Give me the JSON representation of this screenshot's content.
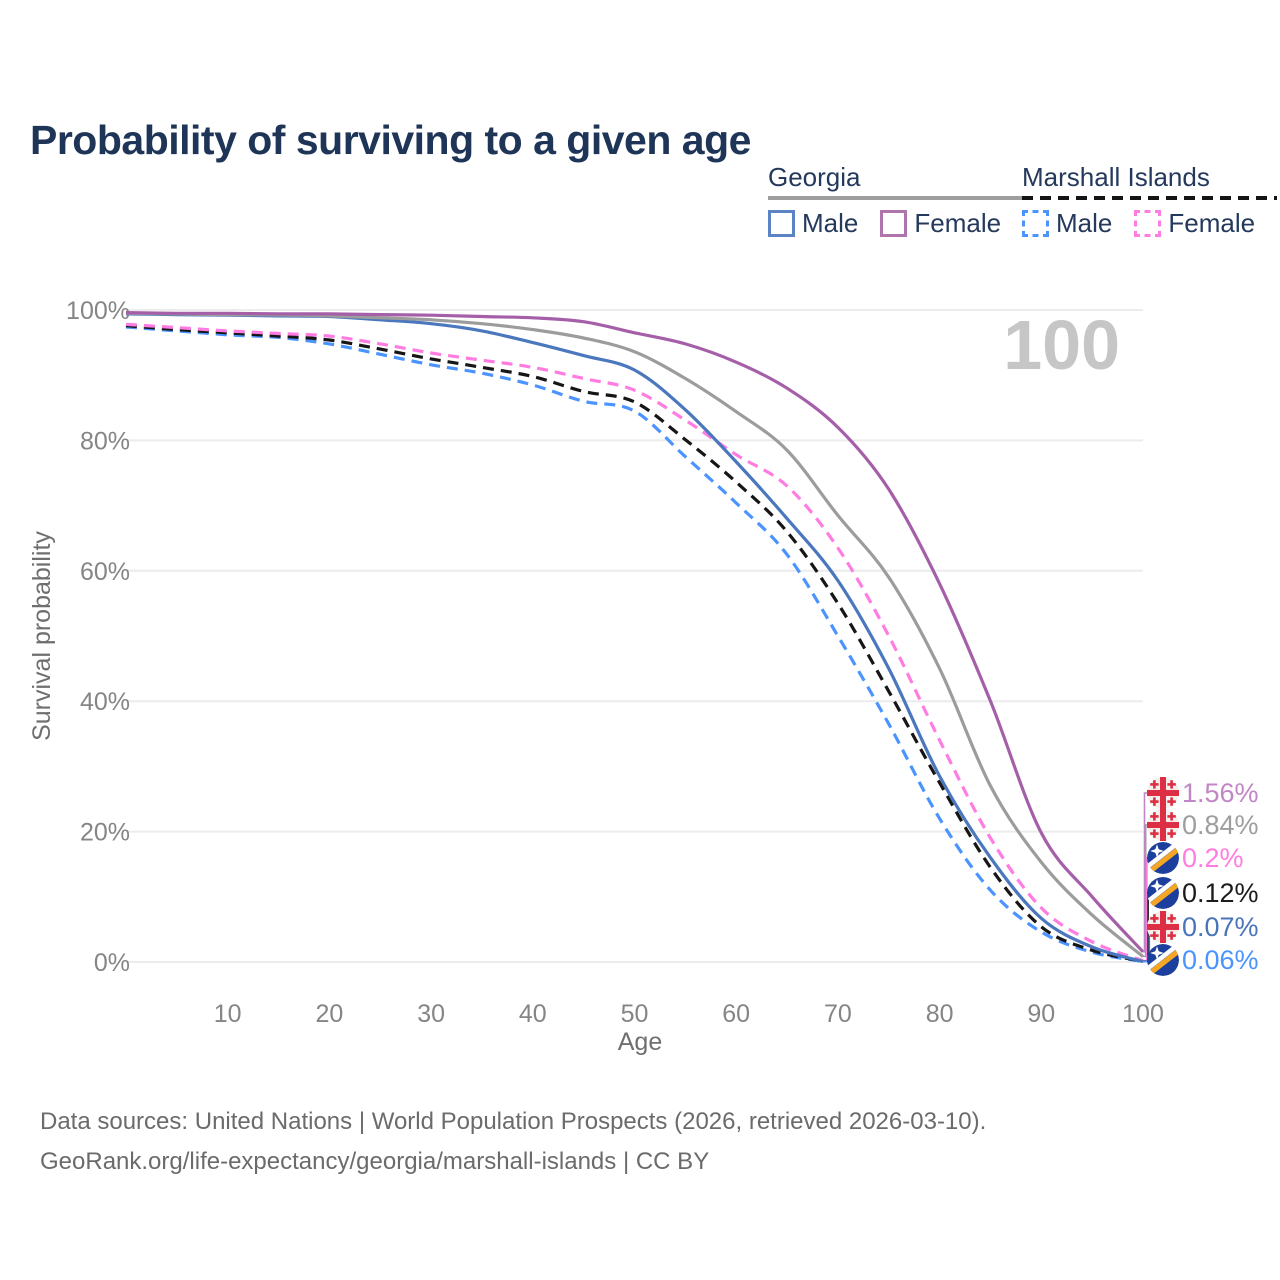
{
  "title": "Probability of surviving to a given age",
  "watermark_age": "100",
  "legend": {
    "georgia": {
      "label": "Georgia",
      "male": "Male",
      "female": "Female"
    },
    "marshall": {
      "label": "Marshall Islands",
      "male": "Male",
      "female": "Female"
    }
  },
  "footer": {
    "line1": "Data sources: United Nations | World Population Prospects (2026, retrieved 2026-03-10).",
    "line2": "GeoRank.org/life-expectancy/georgia/marshall-islands | CC BY"
  },
  "chart_data": {
    "type": "line",
    "title": "Probability of surviving to a given age",
    "xlabel": "Age",
    "ylabel": "Survival probability",
    "xlim": [
      0,
      100
    ],
    "ylim": [
      0,
      100
    ],
    "grid": "horizontal",
    "legend_position": "top-right",
    "x_ticks": [
      10,
      20,
      30,
      40,
      50,
      60,
      70,
      80,
      90,
      100
    ],
    "y_ticks": [
      "0%",
      "20%",
      "40%",
      "60%",
      "80%",
      "100%"
    ],
    "ages": [
      0,
      5,
      10,
      15,
      20,
      25,
      30,
      35,
      40,
      45,
      50,
      55,
      60,
      65,
      70,
      75,
      80,
      85,
      90,
      95,
      100
    ],
    "series": [
      {
        "name": "Marshall Islands Male",
        "flag": "marshall-islands",
        "style": "dashed",
        "color": "#4b94ff",
        "label_color": "#4b94ff",
        "end_label": "0.06%",
        "values": [
          97.4,
          96.8,
          96.2,
          95.8,
          94.8,
          93.2,
          91.6,
          90.3,
          88.5,
          86.0,
          84.5,
          77.5,
          70.4,
          62.5,
          50.0,
          36.5,
          22.0,
          11.0,
          4.6,
          1.5,
          0.06
        ]
      },
      {
        "name": "Marshall Islands Both sexes",
        "flag": "marshall-islands",
        "style": "dashed",
        "color": "#161616",
        "label_color": "#1c1c1c",
        "end_label": "0.12%",
        "values": [
          97.6,
          97.0,
          96.5,
          96.0,
          95.4,
          94.0,
          92.5,
          91.2,
          89.8,
          87.5,
          85.9,
          80.1,
          73.6,
          66.0,
          55.0,
          41.5,
          27.5,
          14.5,
          5.4,
          1.8,
          0.12
        ]
      },
      {
        "name": "Marshall Islands Female",
        "flag": "marshall-islands",
        "style": "dashed",
        "color": "#ff7ce2",
        "label_color": "#ff7ce2",
        "end_label": "0.2%",
        "values": [
          97.8,
          97.3,
          96.8,
          96.4,
          96.0,
          94.8,
          93.4,
          92.3,
          91.2,
          89.5,
          87.7,
          83.1,
          77.8,
          73.0,
          63.5,
          50.0,
          34.0,
          19.0,
          8.3,
          3.1,
          0.2
        ]
      },
      {
        "name": "Georgia Male",
        "flag": "georgia",
        "style": "solid",
        "color": "#4a77bd",
        "label_color": "#4a74ba",
        "end_label": "0.07%",
        "values": [
          99.4,
          99.3,
          99.2,
          99.1,
          99.0,
          98.5,
          97.9,
          96.8,
          95.0,
          93.0,
          90.8,
          84.7,
          76.7,
          68.0,
          58.5,
          45.0,
          28.5,
          16.0,
          6.7,
          2.3,
          0.07
        ]
      },
      {
        "name": "Georgia Both sexes",
        "flag": "georgia",
        "style": "solid",
        "color": "#9c9c9c",
        "label_color": "#9e9e9e",
        "end_label": "0.84%",
        "values": [
          99.5,
          99.4,
          99.3,
          99.25,
          99.1,
          98.8,
          98.5,
          97.9,
          97.0,
          95.7,
          93.6,
          89.5,
          84.4,
          78.5,
          68.5,
          59.0,
          45.0,
          27.0,
          15.3,
          7.2,
          0.84
        ]
      },
      {
        "name": "Georgia Female",
        "flag": "georgia",
        "style": "solid",
        "color": "#a55fa8",
        "label_color": "#c186c6",
        "end_label": "1.56%",
        "values": [
          99.6,
          99.5,
          99.5,
          99.4,
          99.4,
          99.3,
          99.2,
          99.0,
          98.8,
          98.2,
          96.5,
          94.8,
          92.0,
          88.0,
          82.0,
          72.5,
          58.0,
          40.0,
          19.8,
          10.0,
          1.56
        ]
      }
    ]
  }
}
